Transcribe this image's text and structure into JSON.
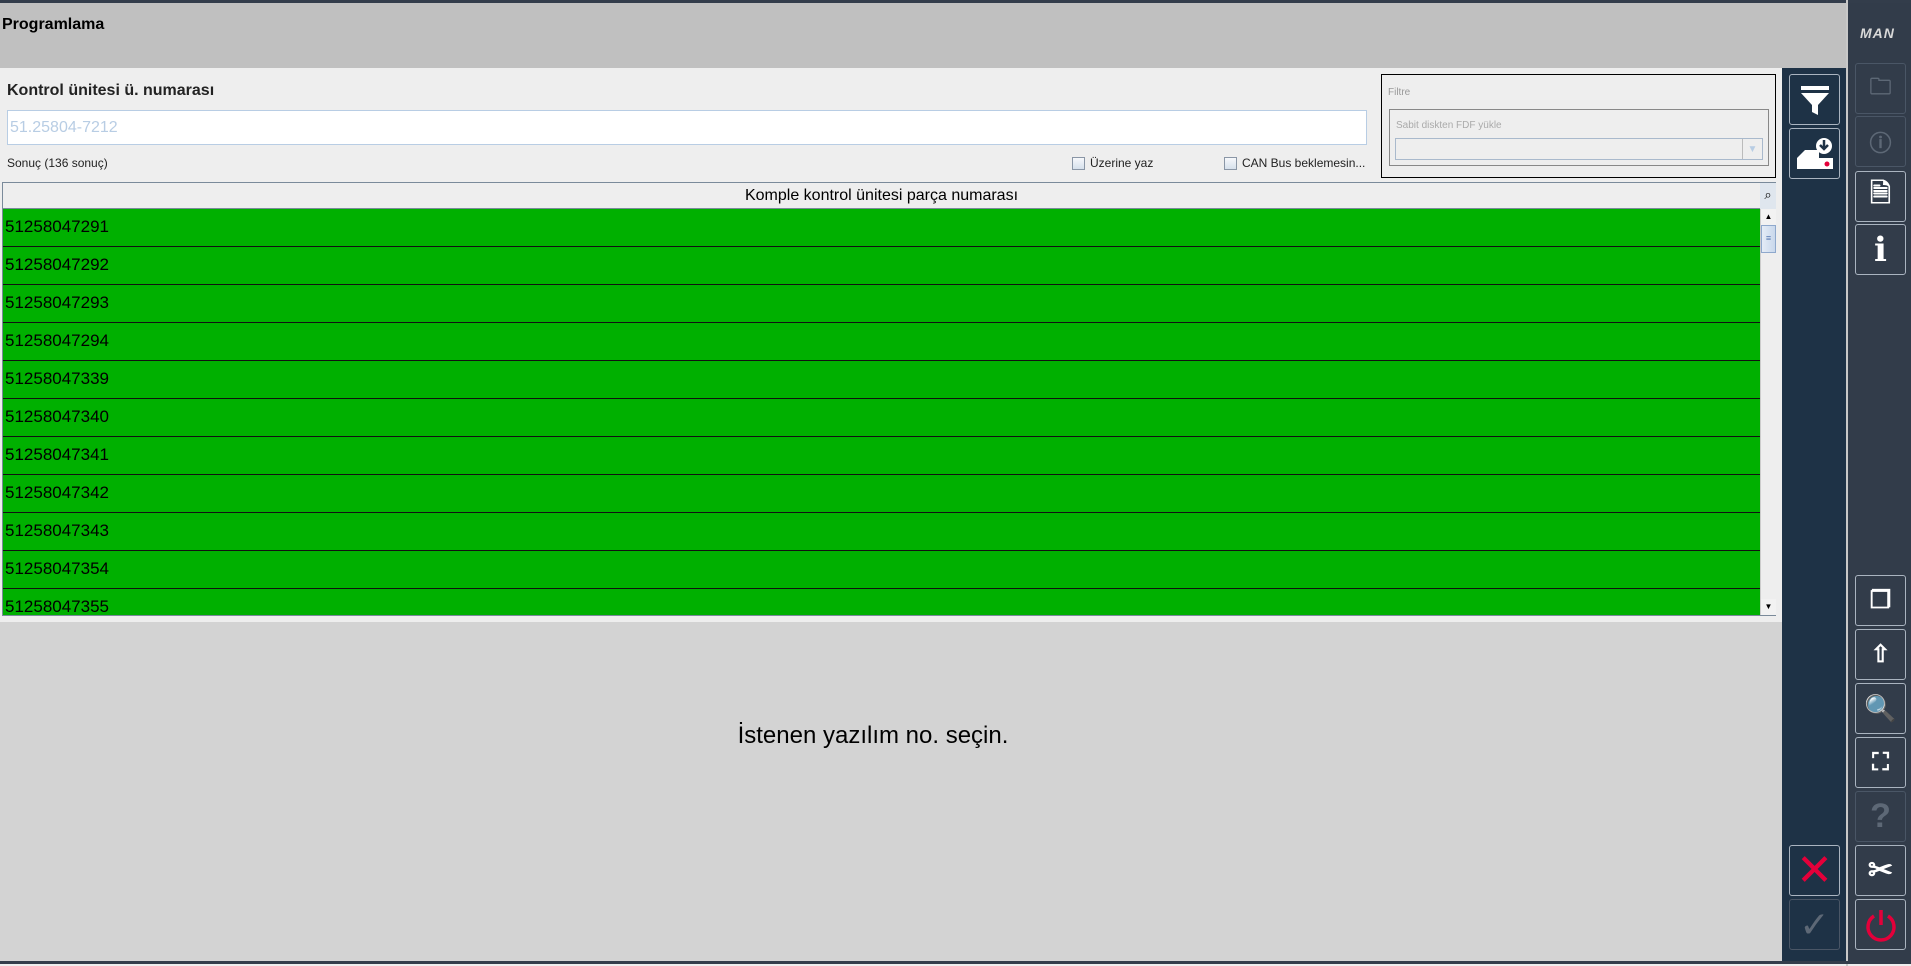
{
  "header": {
    "title": "Programlama"
  },
  "form": {
    "ecu_label": "Kontrol ünitesi ü. numarası",
    "ecu_value": "51.25804-7212",
    "result_count": "Sonuç (136 sonuç)",
    "overwrite_label": "Üzerine yaz",
    "overwrite_checked": false,
    "canbus_label": "CAN Bus beklemesin...",
    "canbus_checked": false
  },
  "filter": {
    "title": "Filtre",
    "fdf_label": "Sabit diskten FDF yükle",
    "fdf_value": ""
  },
  "table": {
    "header": "Komple kontrol ünitesi parça numarası",
    "row_color": "#00b000",
    "rows": [
      "51258047291",
      "51258047292",
      "51258047293",
      "51258047294",
      "51258047339",
      "51258047340",
      "51258047341",
      "51258047342",
      "51258047343",
      "51258047354",
      "51258047355"
    ]
  },
  "message": "İstenen yazılım no. seçin.",
  "brand": "MAN",
  "sidebar": {
    "buttons": [
      "filter-icon",
      "hdd-download-icon"
    ],
    "cancel": "close-icon",
    "confirm": "check-icon",
    "accent": "#e4003a"
  },
  "rail": {
    "top": [
      "vehicle-folder-icon",
      "vehicle-info-icon",
      "document-info-icon",
      "info-icon"
    ],
    "bottom": [
      "windows-icon",
      "folder-upload-icon",
      "document-search-icon",
      "screenshot-icon",
      "help-icon",
      "tools-icon",
      "power-icon"
    ]
  }
}
